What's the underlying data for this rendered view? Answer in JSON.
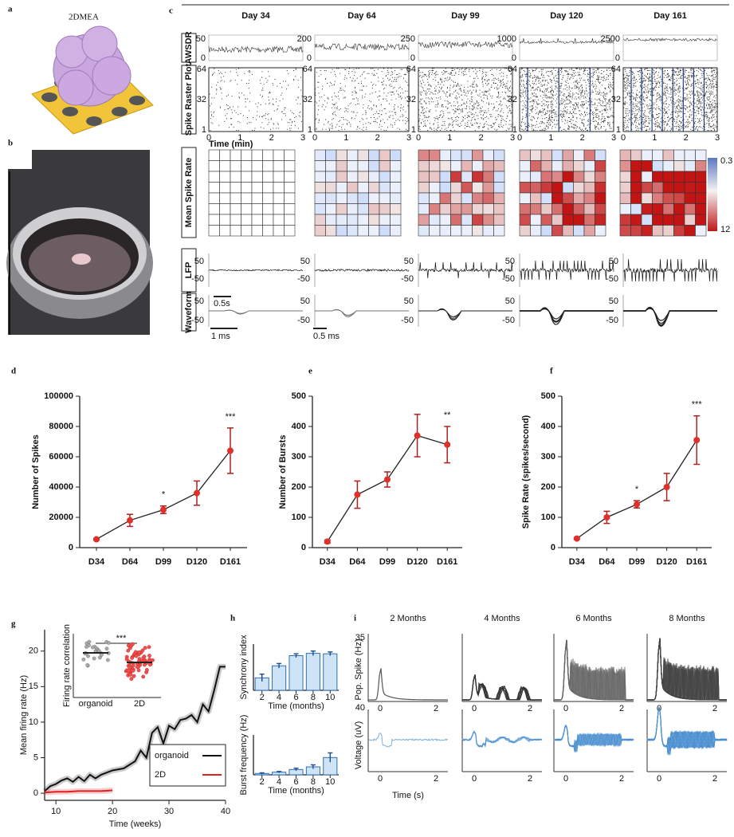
{
  "figure": {
    "panel_labels": [
      "a",
      "b",
      "c",
      "d",
      "e",
      "f",
      "g",
      "h",
      "i"
    ],
    "panel_a": {
      "title": "2DMEA"
    },
    "panel_c": {
      "days": [
        "Day 34",
        "Day 64",
        "Day 99",
        "Day 120",
        "Day 161"
      ],
      "row_labels": [
        "AWSDR",
        "Spike Raster Plot",
        "Mean Spike Rate",
        "LFP",
        "Waveform"
      ],
      "awsdr_top": [
        50,
        200,
        250,
        1000,
        2500
      ],
      "awsdr_bottom": 0,
      "raster_yticks": [
        64,
        32,
        1
      ],
      "raster_xticks": [
        0,
        1,
        2,
        3
      ],
      "raster_xlabel": "Time (min)",
      "colorbar_labels": [
        0.3,
        12
      ],
      "lfp_ticks": [
        50,
        -50
      ],
      "lfp_scale": "0.5s",
      "waveform_ticks": [
        50,
        -50
      ],
      "waveform_scales": [
        "1 ms",
        "0.5 ms"
      ]
    },
    "panel_i": {
      "titles": [
        "2 Months",
        "4 Months",
        "6 Months",
        "8 Months"
      ],
      "top_ylabel": "Pop. Spike (Hz)",
      "bottom_ylabel": "Voltage (uV)",
      "top_ytick": 35,
      "bottom_ytick": 40,
      "xticks": [
        0,
        2
      ],
      "xlabel": "Time (s)"
    }
  },
  "chart_data": [
    {
      "type": "line",
      "ylabel": "Number of Spikes",
      "categories": [
        "D34",
        "D64",
        "D99",
        "D120",
        "D161"
      ],
      "values": [
        5500,
        18000,
        25000,
        36000,
        64000
      ],
      "errors": [
        500,
        4000,
        2500,
        8000,
        15000
      ],
      "ylim": [
        0,
        100000
      ],
      "yticks": [
        0,
        20000,
        40000,
        60000,
        80000,
        100000
      ],
      "line_color": "#222222",
      "marker_color": "#e0302a",
      "error_color": "#b02020",
      "annotations": [
        {
          "text": "*",
          "at": "D99",
          "color": "#e0302a"
        },
        {
          "text": "***",
          "at": "D161",
          "color": "#222222"
        }
      ]
    },
    {
      "type": "line",
      "ylabel": "Number of Bursts",
      "categories": [
        "D34",
        "D64",
        "D99",
        "D120",
        "D161"
      ],
      "values": [
        20,
        175,
        225,
        370,
        340
      ],
      "errors": [
        5,
        45,
        25,
        70,
        60
      ],
      "ylim": [
        0,
        500
      ],
      "yticks": [
        0,
        100,
        200,
        300,
        400,
        500
      ],
      "line_color": "#222222",
      "marker_color": "#e0302a",
      "error_color": "#b02020",
      "annotations": [
        {
          "text": "**",
          "at": "D161",
          "color": "#222222"
        }
      ]
    },
    {
      "type": "line",
      "ylabel": "Spike Rate (spikes/second)",
      "categories": [
        "D34",
        "D64",
        "D99",
        "D120",
        "D161"
      ],
      "values": [
        30,
        100,
        143,
        200,
        355
      ],
      "errors": [
        3,
        20,
        12,
        45,
        80
      ],
      "ylim": [
        0,
        500
      ],
      "yticks": [
        0,
        100,
        200,
        300,
        400,
        500
      ],
      "line_color": "#222222",
      "marker_color": "#e0302a",
      "error_color": "#b02020",
      "annotations": [
        {
          "text": "*",
          "at": "D99",
          "color": "#e0302a"
        },
        {
          "text": "***",
          "at": "D161",
          "color": "#222222"
        }
      ]
    },
    {
      "type": "line",
      "ylabel": "Mean firing rate (Hz)",
      "xlabel": "Time (weeks)",
      "xlim": [
        8,
        40
      ],
      "xticks": [
        10,
        20,
        30,
        40
      ],
      "ylim": [
        -1,
        23
      ],
      "yticks": [
        0,
        5,
        10,
        15,
        20
      ],
      "legend": "lower right",
      "series": [
        {
          "name": "organoid",
          "color": "#111111",
          "x": [
            8,
            9,
            10,
            11,
            12,
            13,
            14,
            15,
            16,
            17,
            18,
            19,
            20,
            22,
            24,
            25,
            26,
            27,
            28,
            29,
            30,
            31,
            32,
            33,
            34,
            35,
            36,
            37,
            38,
            39,
            40
          ],
          "values": [
            0.3,
            1,
            1.3,
            1.8,
            2.1,
            1.6,
            2.3,
            1.7,
            2.6,
            2.1,
            2.6,
            2.9,
            3.2,
            3.5,
            4.5,
            6,
            5,
            8.5,
            9.3,
            7,
            9.5,
            9,
            10.3,
            10.5,
            11,
            10,
            12.5,
            11.5,
            14.5,
            17.8,
            17.8
          ]
        },
        {
          "name": "2D",
          "color": "#e02020",
          "x": [
            8,
            10,
            12,
            14,
            16,
            18,
            20
          ],
          "values": [
            0.1,
            0.2,
            0.2,
            0.3,
            0.3,
            0.3,
            0.4
          ]
        }
      ],
      "inset": {
        "ylabel": "Firing rate correlation",
        "categories": [
          "organoid",
          "2D"
        ],
        "annotation": "***"
      }
    },
    {
      "type": "bar",
      "ylabel": "Synchrony index",
      "xlabel": "Time (months)",
      "categories": [
        "2",
        "4",
        "6",
        "8",
        "10"
      ],
      "values": [
        0.27,
        0.53,
        0.75,
        0.8,
        0.79
      ],
      "errors": [
        0.08,
        0.05,
        0.04,
        0.05,
        0.04
      ],
      "ylim": [
        0,
        1
      ],
      "color": "#cfe3f7",
      "edge_color": "#2f6fb5"
    },
    {
      "type": "bar",
      "ylabel": "Burst frequency (Hz)",
      "xlabel": "Time (months)",
      "categories": [
        "2",
        "4",
        "6",
        "8",
        "10"
      ],
      "values": [
        0.02,
        0.04,
        0.08,
        0.12,
        0.26
      ],
      "errors": [
        0.01,
        0.01,
        0.02,
        0.03,
        0.07
      ],
      "ylim": [
        0,
        0.6
      ],
      "color": "#cfe3f7",
      "edge_color": "#2f6fb5"
    }
  ]
}
